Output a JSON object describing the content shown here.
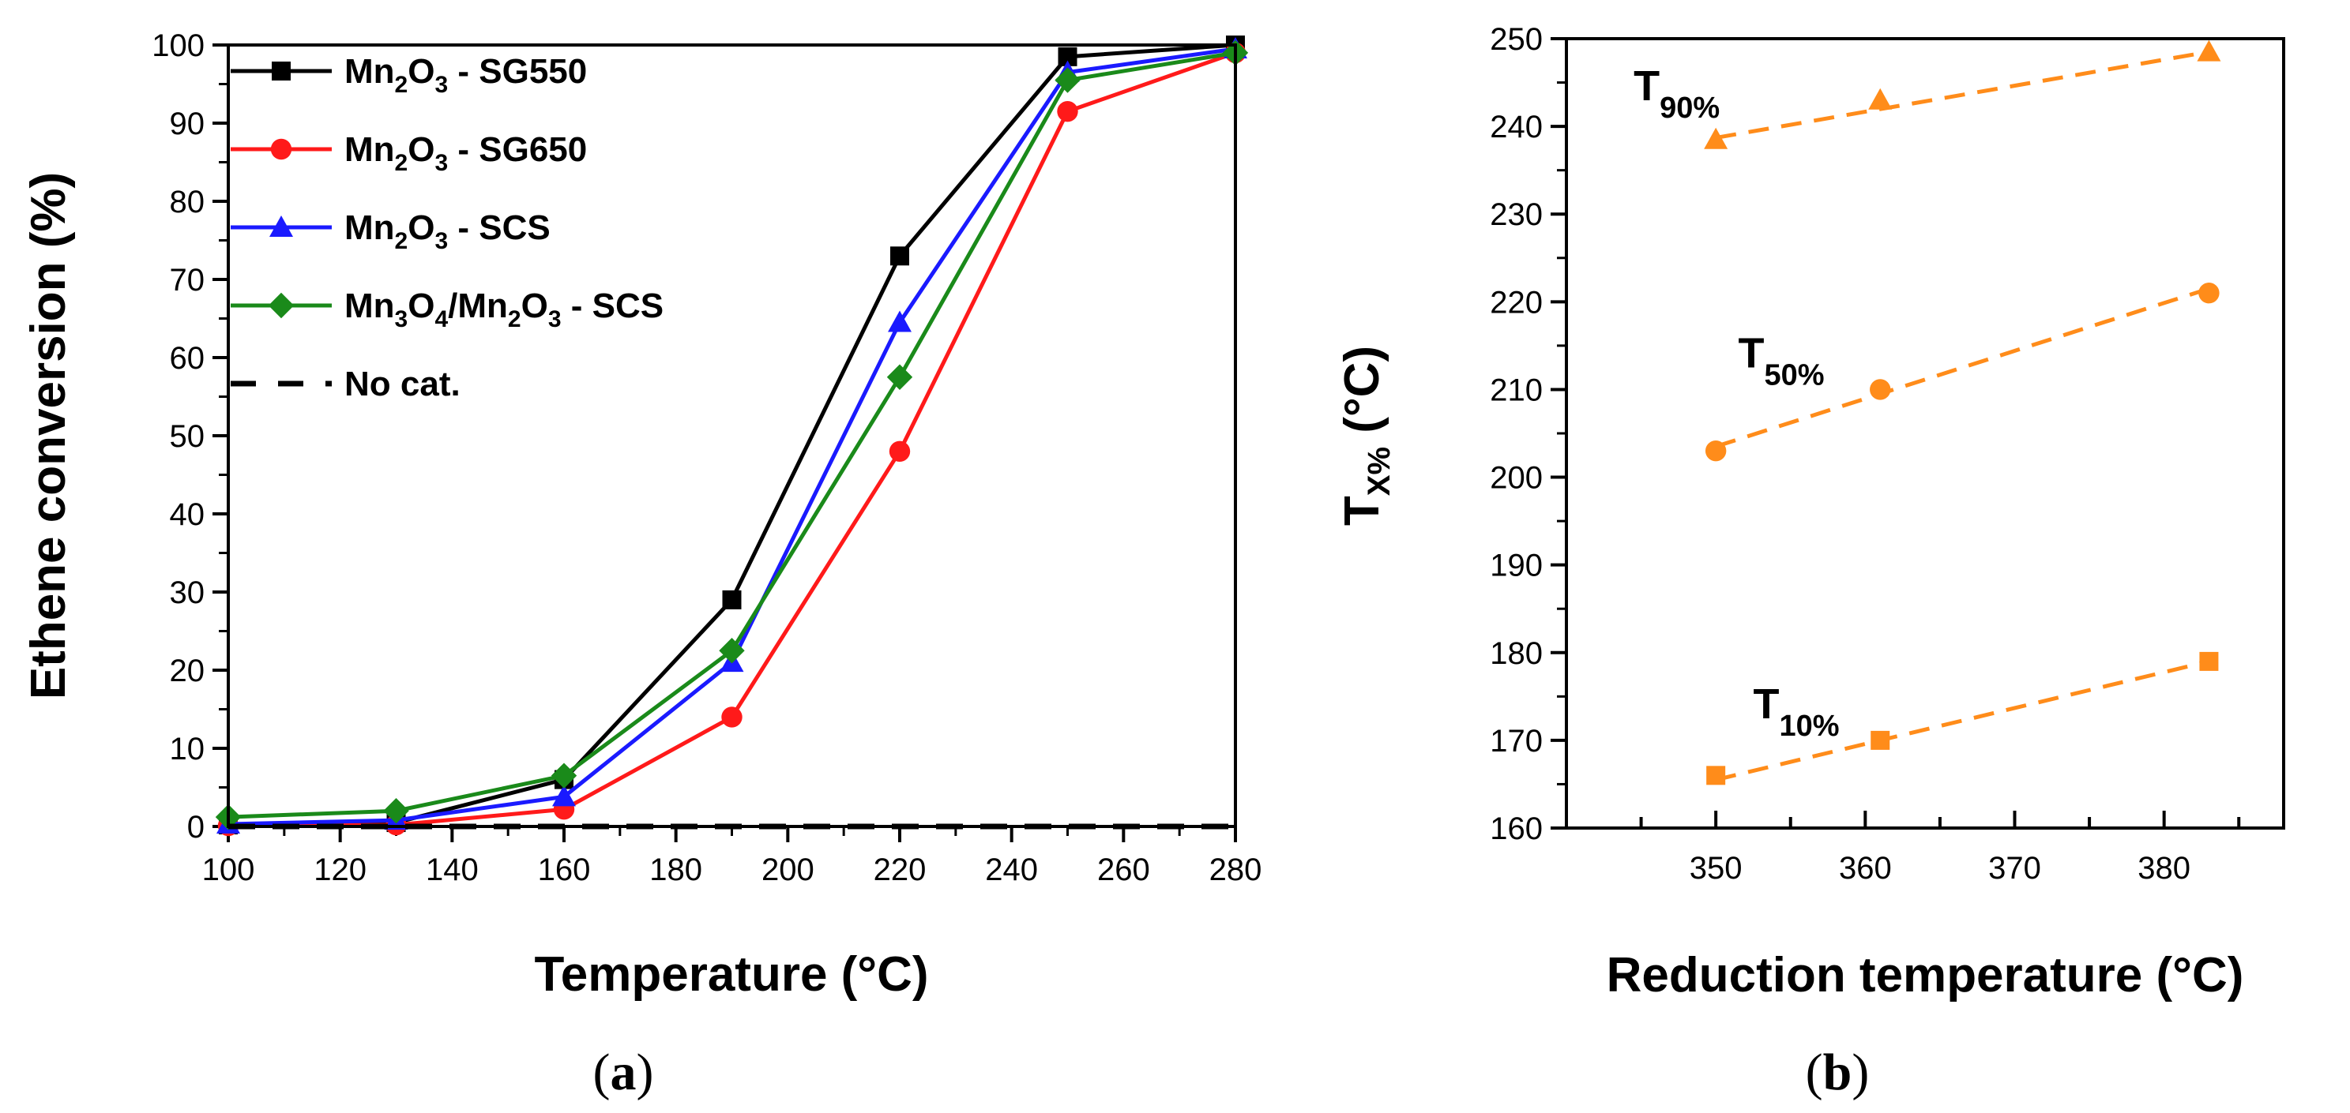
{
  "charts": [
    {
      "type": "line",
      "panel": "a",
      "title": "",
      "xlabel": "Temperature (°C)",
      "ylabel": "Ethene conversion (%)",
      "xlim": [
        100,
        280
      ],
      "ylim": [
        0,
        100
      ],
      "xticks": [
        100,
        120,
        140,
        160,
        180,
        200,
        220,
        240,
        260,
        280
      ],
      "yticks": [
        0,
        10,
        20,
        30,
        40,
        50,
        60,
        70,
        80,
        90,
        100
      ],
      "legend_position": "top-left",
      "series": [
        {
          "name": "Mn2O3 - SG550",
          "legend_parts": [
            [
              "Mn",
              false
            ],
            [
              "2",
              true
            ],
            [
              "O",
              false
            ],
            [
              "3",
              true
            ],
            [
              " - SG550",
              false
            ]
          ],
          "color": "#000000",
          "marker": "square",
          "dash": false,
          "x": [
            100,
            130,
            160,
            190,
            220,
            250,
            280
          ],
          "y": [
            0.2,
            0.5,
            6.0,
            29.0,
            73.0,
            98.5,
            100.0
          ]
        },
        {
          "name": "Mn2O3 - SG650",
          "legend_parts": [
            [
              "Mn",
              false
            ],
            [
              "2",
              true
            ],
            [
              "O",
              false
            ],
            [
              "3",
              true
            ],
            [
              " - SG650",
              false
            ]
          ],
          "color": "#ff1a1a",
          "marker": "circle",
          "dash": false,
          "x": [
            100,
            130,
            160,
            190,
            220,
            250,
            280
          ],
          "y": [
            0.1,
            0.2,
            2.2,
            14.0,
            48.0,
            91.5,
            99.0
          ]
        },
        {
          "name": "Mn2O3 - SCS",
          "legend_parts": [
            [
              "Mn",
              false
            ],
            [
              "2",
              true
            ],
            [
              "O",
              false
            ],
            [
              "3",
              true
            ],
            [
              " - SCS",
              false
            ]
          ],
          "color": "#1a1aff",
          "marker": "triangle",
          "dash": false,
          "x": [
            100,
            130,
            160,
            190,
            220,
            250,
            280
          ],
          "y": [
            0.3,
            0.8,
            3.8,
            21.0,
            64.5,
            96.5,
            99.5
          ]
        },
        {
          "name": "Mn3O4/Mn2O3 - SCS",
          "legend_parts": [
            [
              "Mn",
              false
            ],
            [
              "3",
              true
            ],
            [
              "O",
              false
            ],
            [
              "4",
              true
            ],
            [
              "/Mn",
              false
            ],
            [
              "2",
              true
            ],
            [
              "O",
              false
            ],
            [
              "3",
              true
            ],
            [
              " - SCS",
              false
            ]
          ],
          "color": "#1a8a1a",
          "marker": "diamond",
          "dash": false,
          "x": [
            100,
            130,
            160,
            190,
            220,
            250,
            280
          ],
          "y": [
            1.2,
            2.0,
            6.5,
            22.5,
            57.5,
            95.5,
            99.0
          ]
        },
        {
          "name": "No cat.",
          "legend_parts": [
            [
              "No cat.",
              false
            ]
          ],
          "color": "#000000",
          "marker": "none",
          "dash": true,
          "x": [
            100,
            280
          ],
          "y": [
            0,
            0
          ]
        }
      ],
      "caption": "a"
    },
    {
      "type": "scatter",
      "panel": "b",
      "title": "",
      "xlabel": "Reduction temperature (°C)",
      "ylabel_main": "T",
      "ylabel_sub": "X%",
      "ylabel_tail": " (°C)",
      "xlim": [
        340,
        388
      ],
      "ylim": [
        160,
        250
      ],
      "xticks": [
        350,
        360,
        370,
        380
      ],
      "yticks": [
        160,
        170,
        180,
        190,
        200,
        210,
        220,
        230,
        240,
        250
      ],
      "color": "#ff8c1a",
      "series": [
        {
          "name": "T90%",
          "label_main": "T",
          "label_sub": "90%",
          "marker": "triangle",
          "x": [
            350,
            361,
            383
          ],
          "y": [
            238.5,
            243.0,
            248.5
          ],
          "fit": [
            [
              350,
              238.7
            ],
            [
              383,
              248.5
            ]
          ],
          "label_at": [
            344.5,
            243.0
          ]
        },
        {
          "name": "T50%",
          "label_main": "T",
          "label_sub": "50%",
          "marker": "circle",
          "x": [
            350,
            361,
            383
          ],
          "y": [
            203,
            210,
            221
          ],
          "fit": [
            [
              350,
              203.5
            ],
            [
              383,
              221.5
            ]
          ],
          "label_at": [
            351.5,
            212.5
          ]
        },
        {
          "name": "T10%",
          "label_main": "T",
          "label_sub": "10%",
          "marker": "square",
          "x": [
            350,
            361,
            383
          ],
          "y": [
            166,
            170,
            179
          ],
          "fit": [
            [
              350,
              165.5
            ],
            [
              383,
              179.0
            ]
          ],
          "label_at": [
            352.5,
            172.5
          ]
        }
      ],
      "caption": "b"
    }
  ]
}
